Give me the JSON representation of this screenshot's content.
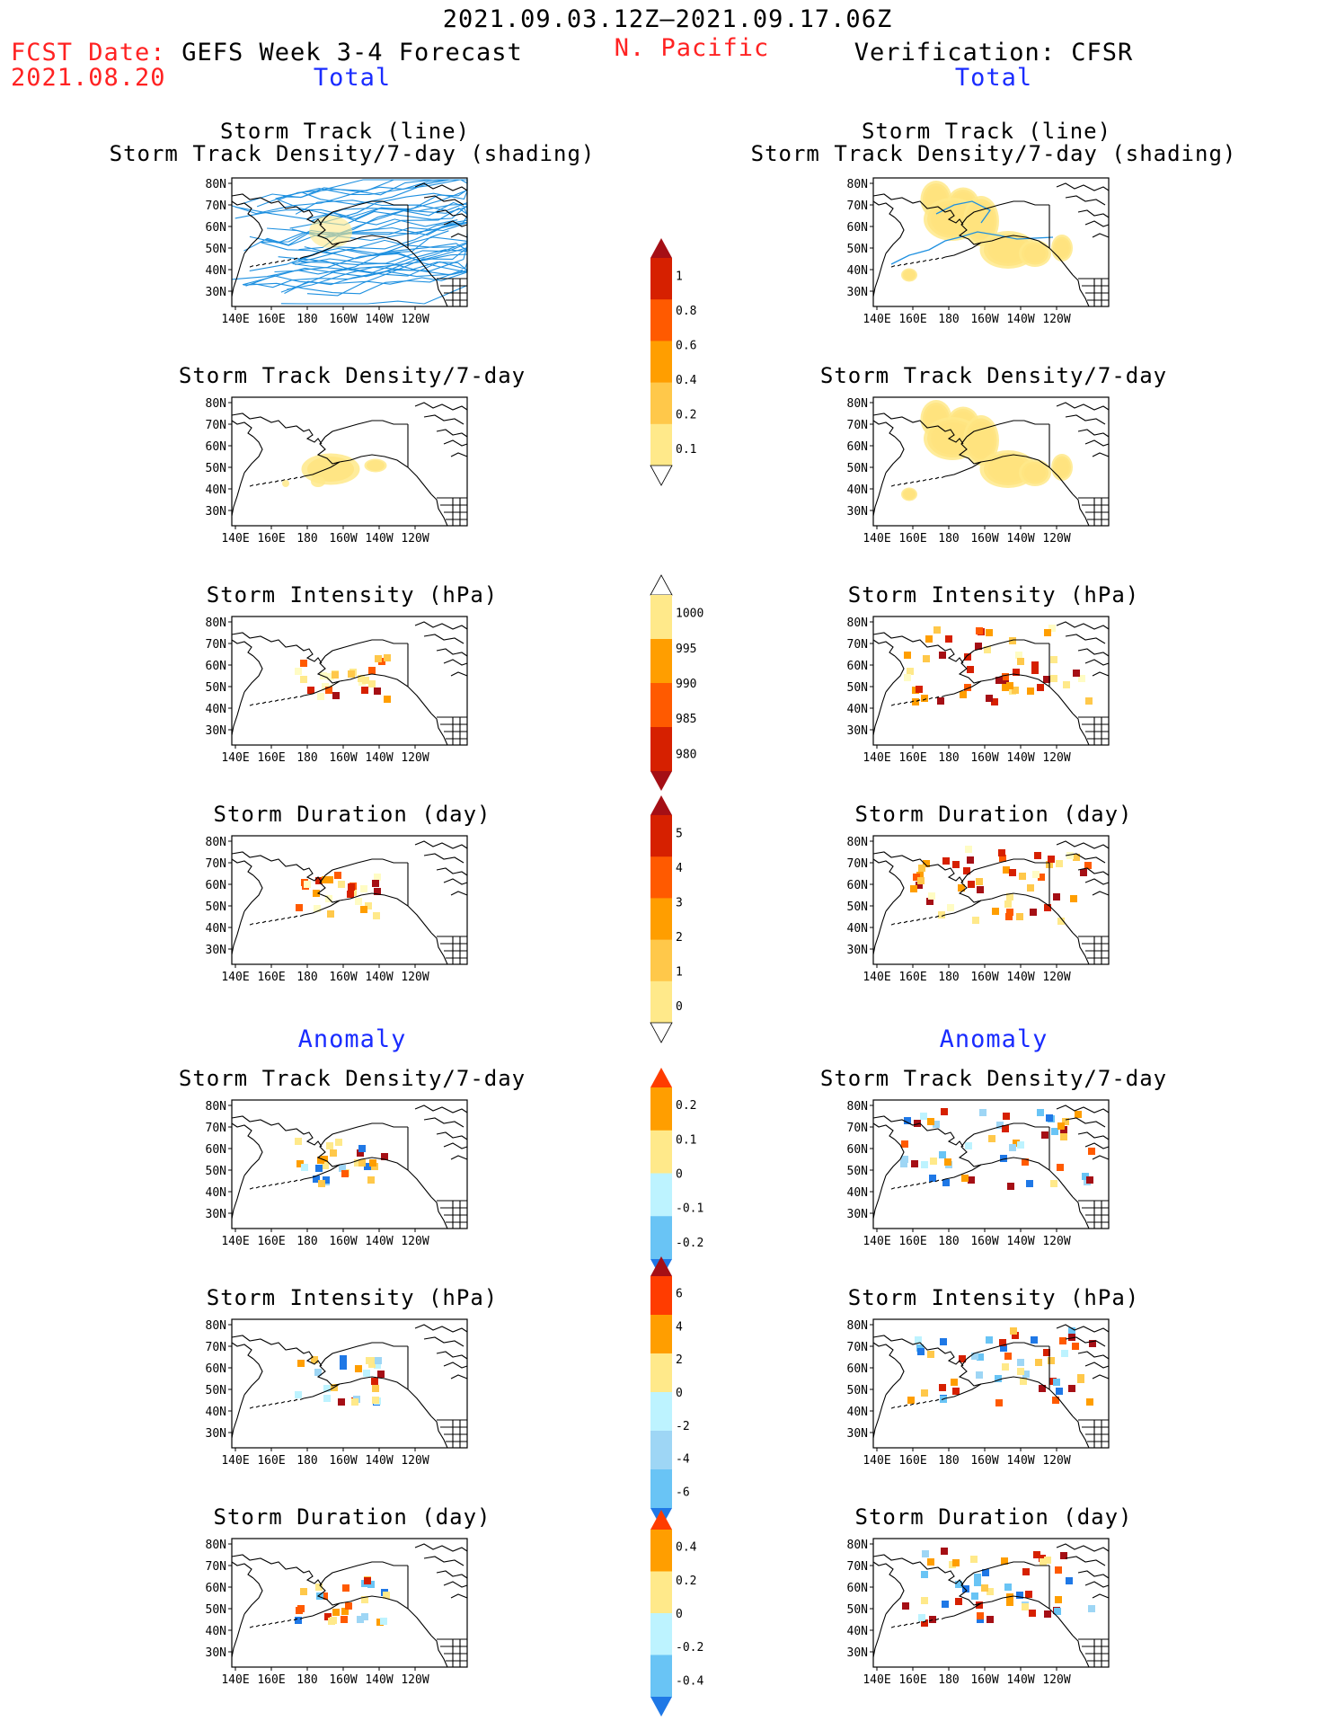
{
  "header": {
    "date_range": "2021.09.03.12Z–2021.09.17.06Z",
    "region": "N. Pacific",
    "fcst_label": "FCST Date:",
    "fcst_date": "2021.08.20",
    "left_title": "GEFS Week 3-4 Forecast",
    "right_title": "Verification: CFSR",
    "total_left": "Total",
    "total_right": "Total",
    "anomaly_left": "Anomaly",
    "anomaly_right": "Anomaly"
  },
  "axes": {
    "lat_ticks": [
      "80N",
      "70N",
      "60N",
      "50N",
      "40N",
      "30N"
    ],
    "lon_ticks": [
      "140E",
      "160E",
      "180",
      "160W",
      "140W",
      "120W"
    ]
  },
  "panels": {
    "track_title_1": "Storm Track (line)",
    "track_title_2": "Storm Track Density/7-day (shading)",
    "density": "Storm Track Density/7-day",
    "intensity": "Storm Intensity (hPa)",
    "duration": "Storm Duration (day)"
  },
  "colorbars": [
    {
      "id": "density_total",
      "labels": [
        "1",
        "0.8",
        "0.6",
        "0.4",
        "0.2",
        "0.1"
      ],
      "colors": [
        "#a50f15",
        "#d62000",
        "#ff5a00",
        "#ff9e00",
        "#ffc84a",
        "#ffe98a",
        "#fffcc4"
      ],
      "tail": "bottom"
    },
    {
      "id": "intensity_total",
      "labels": [
        "1000",
        "995",
        "990",
        "985",
        "980"
      ],
      "colors": [
        "#fffcc4",
        "#ffe98a",
        "#ff9e00",
        "#ff5a00",
        "#d62000",
        "#a50f15"
      ],
      "tail": "top"
    },
    {
      "id": "duration_total",
      "labels": [
        "5",
        "4",
        "3",
        "2",
        "1",
        "0"
      ],
      "colors": [
        "#a50f15",
        "#d62000",
        "#ff5a00",
        "#ff9e00",
        "#ffc84a",
        "#ffe98a",
        "#fffcc4"
      ],
      "tail": "bottom"
    },
    {
      "id": "density_anom",
      "labels": [
        "0.2",
        "0.1",
        "0",
        "-0.1",
        "-0.2"
      ],
      "colors": [
        "#ff3c00",
        "#ff9e00",
        "#ffe98a",
        "#bdf3ff",
        "#69c4f5",
        "#1f78e6"
      ]
    },
    {
      "id": "intensity_anom",
      "labels": [
        "6",
        "4",
        "2",
        "0",
        "-2",
        "-4",
        "-6"
      ],
      "colors": [
        "#a50f15",
        "#ff3c00",
        "#ff9e00",
        "#ffe98a",
        "#bdf3ff",
        "#9ed6f5",
        "#69c4f5",
        "#1f78e6"
      ]
    },
    {
      "id": "duration_anom",
      "labels": [
        "0.4",
        "0.2",
        "0",
        "-0.2",
        "-0.4"
      ],
      "colors": [
        "#ff3c00",
        "#ff9e00",
        "#ffe98a",
        "#bdf3ff",
        "#69c4f5",
        "#1f78e6"
      ]
    }
  ],
  "chart_data": {
    "type": "heatmap",
    "colors": {
      "track_line": "#1e90e0",
      "heading_blue": "#1a2cff",
      "heading_red": "#ff2222"
    }
  }
}
